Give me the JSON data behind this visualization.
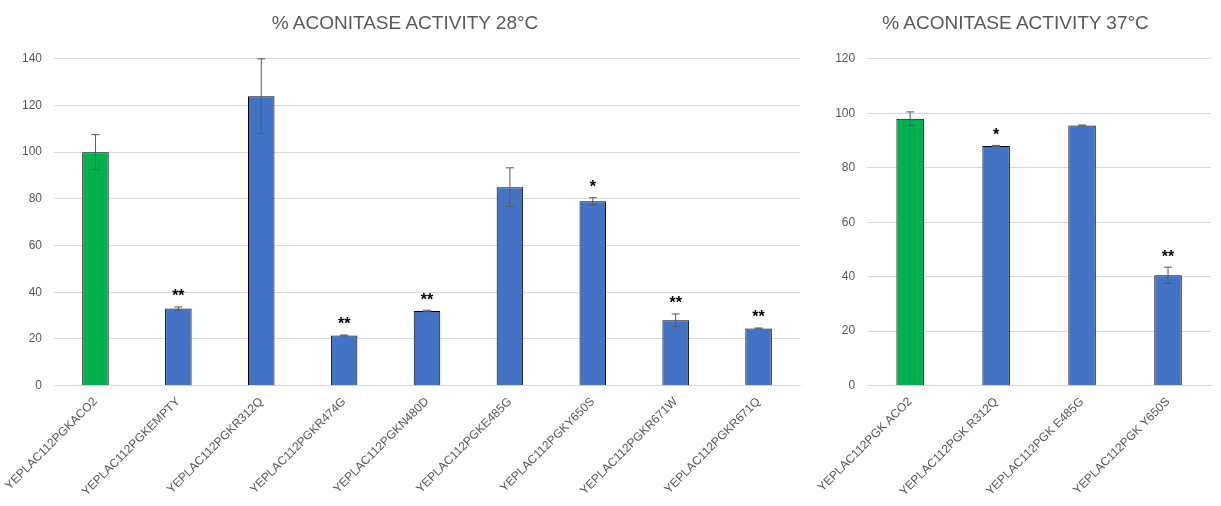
{
  "chart_data": [
    {
      "type": "bar",
      "title": "% ACONITASE ACTIVITY 28°C",
      "categories": [
        "YEPLAC112PGKACO2",
        "YEPLAC112PGKEMPTY",
        "YEPLAC112PGKR312Q",
        "YEPLAC112PGKR474G",
        "YEPLAC112PGKN480D",
        "YEPLAC112PGKE485G",
        "YEPLAC112PGKY650S",
        "YEPLAC112PGKR671W",
        "YEPLAC112PGKR671Q"
      ],
      "values": [
        100,
        33,
        124,
        21.5,
        32,
        85,
        79,
        28,
        24.5
      ],
      "errors": [
        7.5,
        0.7,
        16,
        0.2,
        0.3,
        8.3,
        1.5,
        2.7,
        0.2
      ],
      "colors": [
        "#00b050",
        "#4472c4",
        "#4472c4",
        "#4472c4",
        "#4472c4",
        "#4472c4",
        "#4472c4",
        "#4472c4",
        "#4472c4"
      ],
      "ylim": [
        0,
        140
      ],
      "yticks": [
        0,
        20,
        40,
        60,
        80,
        100,
        120,
        140
      ],
      "grid": "y",
      "legend": false,
      "annotations": [
        {
          "text": "**",
          "x": "YEPLAC112PGKEMPTY",
          "y": 33.7
        },
        {
          "text": "**",
          "x": "YEPLAC112PGKR474G",
          "y": 21.7
        },
        {
          "text": "**",
          "x": "YEPLAC112PGKN480D",
          "y": 32.3
        },
        {
          "text": "*",
          "x": "YEPLAC112PGKY650S",
          "y": 80.5
        },
        {
          "text": "**",
          "x": "YEPLAC112PGKR671W",
          "y": 30.7
        },
        {
          "text": "**",
          "x": "YEPLAC112PGKR671Q",
          "y": 24.7
        }
      ]
    },
    {
      "type": "bar",
      "title": "% ACONITASE ACTIVITY 37°C",
      "categories": [
        "YEPLAC112PGK ACO2",
        "YEPLAC112PGK R312Q",
        "YEPLAC112PGK E485G",
        "YEPLAC112PGK Y650S"
      ],
      "values": [
        98,
        88,
        95.5,
        40.5
      ],
      "errors": [
        2.5,
        0.2,
        0.2,
        3
      ],
      "colors": [
        "#00b050",
        "#4472c4",
        "#4472c4",
        "#4472c4"
      ],
      "ylim": [
        0,
        120
      ],
      "yticks": [
        0,
        20,
        40,
        60,
        80,
        100,
        120
      ],
      "grid": "y",
      "legend": false,
      "annotations": [
        {
          "text": "*",
          "x": "YEPLAC112PGK R312Q",
          "y": 88.2
        },
        {
          "text": "**",
          "x": "YEPLAC112PGK Y650S",
          "y": 43.5
        }
      ]
    }
  ]
}
